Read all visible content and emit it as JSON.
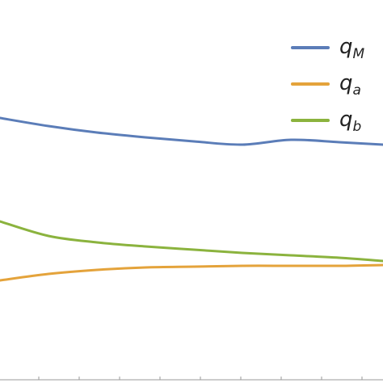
{
  "chart_data": {
    "type": "line",
    "title": "",
    "xlabel": "",
    "ylabel": "",
    "xlim": [
      0,
      474
    ],
    "ylim": [
      0,
      474
    ],
    "xticks": [
      48,
      98,
      148,
      198,
      248,
      298,
      348,
      398,
      448
    ],
    "grid": false,
    "legend": "top-right",
    "series": [
      {
        "key": "qM",
        "name": "q",
        "sub": "M",
        "color": "#5b7db8",
        "x": [
          0,
          60,
          120,
          180,
          240,
          300,
          360,
          420,
          474
        ],
        "y": [
          328,
          318,
          310,
          304,
          299,
          295,
          301,
          298,
          295
        ]
      },
      {
        "key": "qa",
        "name": "q",
        "sub": "a",
        "color": "#e4a33b",
        "x": [
          0,
          60,
          120,
          180,
          240,
          300,
          360,
          420,
          474
        ],
        "y": [
          127,
          135,
          140,
          143,
          144,
          145,
          145,
          145,
          146
        ]
      },
      {
        "key": "qb",
        "name": "q",
        "sub": "b",
        "color": "#8bb33e",
        "x": [
          0,
          60,
          120,
          180,
          240,
          300,
          360,
          420,
          474
        ],
        "y": [
          200,
          182,
          174,
          169,
          165,
          161,
          158,
          155,
          151
        ]
      }
    ]
  }
}
